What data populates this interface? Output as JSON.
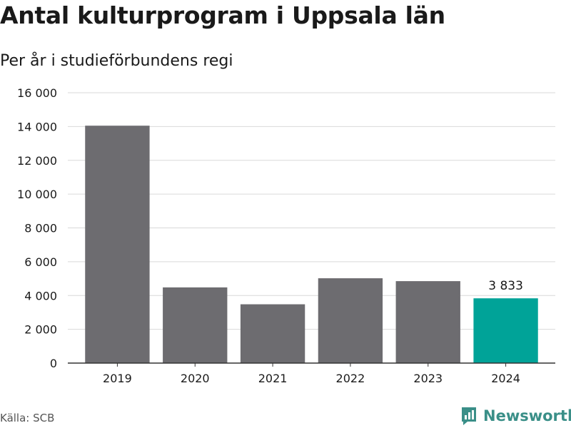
{
  "title": "Antal kulturprogram i Uppsala län",
  "subtitle": "Per år i studieförbundens regi",
  "source": "Källa: SCB",
  "brand": {
    "name": "Newsworthy",
    "icon": "newsworthy-logo-icon"
  },
  "colors": {
    "bar": "#6d6c70",
    "highlight": "#00a398",
    "grid": "#d9d9d9",
    "axis": "#333333",
    "brand": "#3a8f88"
  },
  "chart_data": {
    "type": "bar",
    "categories": [
      "2019",
      "2020",
      "2021",
      "2022",
      "2023",
      "2024"
    ],
    "values": [
      14050,
      4480,
      3480,
      5020,
      4850,
      3833
    ],
    "highlight_index": 5,
    "data_labels": {
      "5": "3 833"
    },
    "ylim": [
      0,
      16000
    ],
    "yticks": [
      0,
      2000,
      4000,
      6000,
      8000,
      10000,
      12000,
      14000,
      16000
    ],
    "ytick_labels": [
      "0",
      "2 000",
      "4 000",
      "6 000",
      "8 000",
      "10 000",
      "12 000",
      "14 000",
      "16 000"
    ],
    "grid": true,
    "legend": false,
    "title": "Antal kulturprogram i Uppsala län",
    "xlabel": "",
    "ylabel": ""
  }
}
